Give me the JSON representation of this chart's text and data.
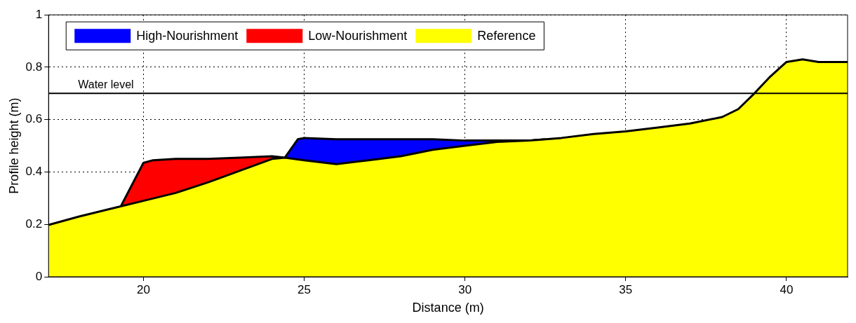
{
  "chart_data": {
    "type": "area",
    "xlabel": "Distance (m)",
    "ylabel": "Profile height (m)",
    "xlim": [
      17.05,
      41.9
    ],
    "xticks": [
      20,
      25,
      30,
      35,
      40
    ],
    "ylim": [
      0,
      1
    ],
    "yticks": [
      0,
      0.2,
      0.4,
      0.6,
      0.8,
      1
    ],
    "grid": true,
    "legend": "top left",
    "marker": "none",
    "series": [
      {
        "name": "High-Nourishment",
        "color": "#0000ff",
        "x": [
          24.4,
          24.8,
          25,
          26,
          27,
          28,
          29,
          30,
          31,
          32,
          32.5
        ],
        "values": [
          0.455,
          0.525,
          0.53,
          0.525,
          0.525,
          0.525,
          0.525,
          0.52,
          0.52,
          0.52,
          0.525
        ]
      },
      {
        "name": "Low-Nourishment",
        "color": "#ff0000",
        "x": [
          19.3,
          20,
          20.3,
          21,
          22,
          23,
          24,
          24.4
        ],
        "values": [
          0.27,
          0.435,
          0.445,
          0.45,
          0.45,
          0.455,
          0.46,
          0.455
        ]
      },
      {
        "name": "Reference",
        "color": "#ffff00",
        "x": [
          17.05,
          18,
          19,
          20,
          21,
          22,
          23,
          24,
          24.4,
          25,
          26,
          27,
          28,
          29,
          30,
          31,
          32,
          33,
          34,
          35,
          36,
          37,
          38,
          38.5,
          39,
          39.5,
          40,
          40.5,
          41,
          41.9
        ],
        "values": [
          0.198,
          0.23,
          0.26,
          0.29,
          0.32,
          0.36,
          0.405,
          0.45,
          0.455,
          0.445,
          0.43,
          0.445,
          0.46,
          0.485,
          0.5,
          0.515,
          0.52,
          0.53,
          0.545,
          0.555,
          0.57,
          0.585,
          0.61,
          0.64,
          0.7,
          0.765,
          0.82,
          0.83,
          0.82,
          0.82
        ]
      }
    ],
    "ref_lines": [
      {
        "axis": "y",
        "value": 0.7,
        "label": "Water level",
        "color": "#000000"
      }
    ]
  }
}
